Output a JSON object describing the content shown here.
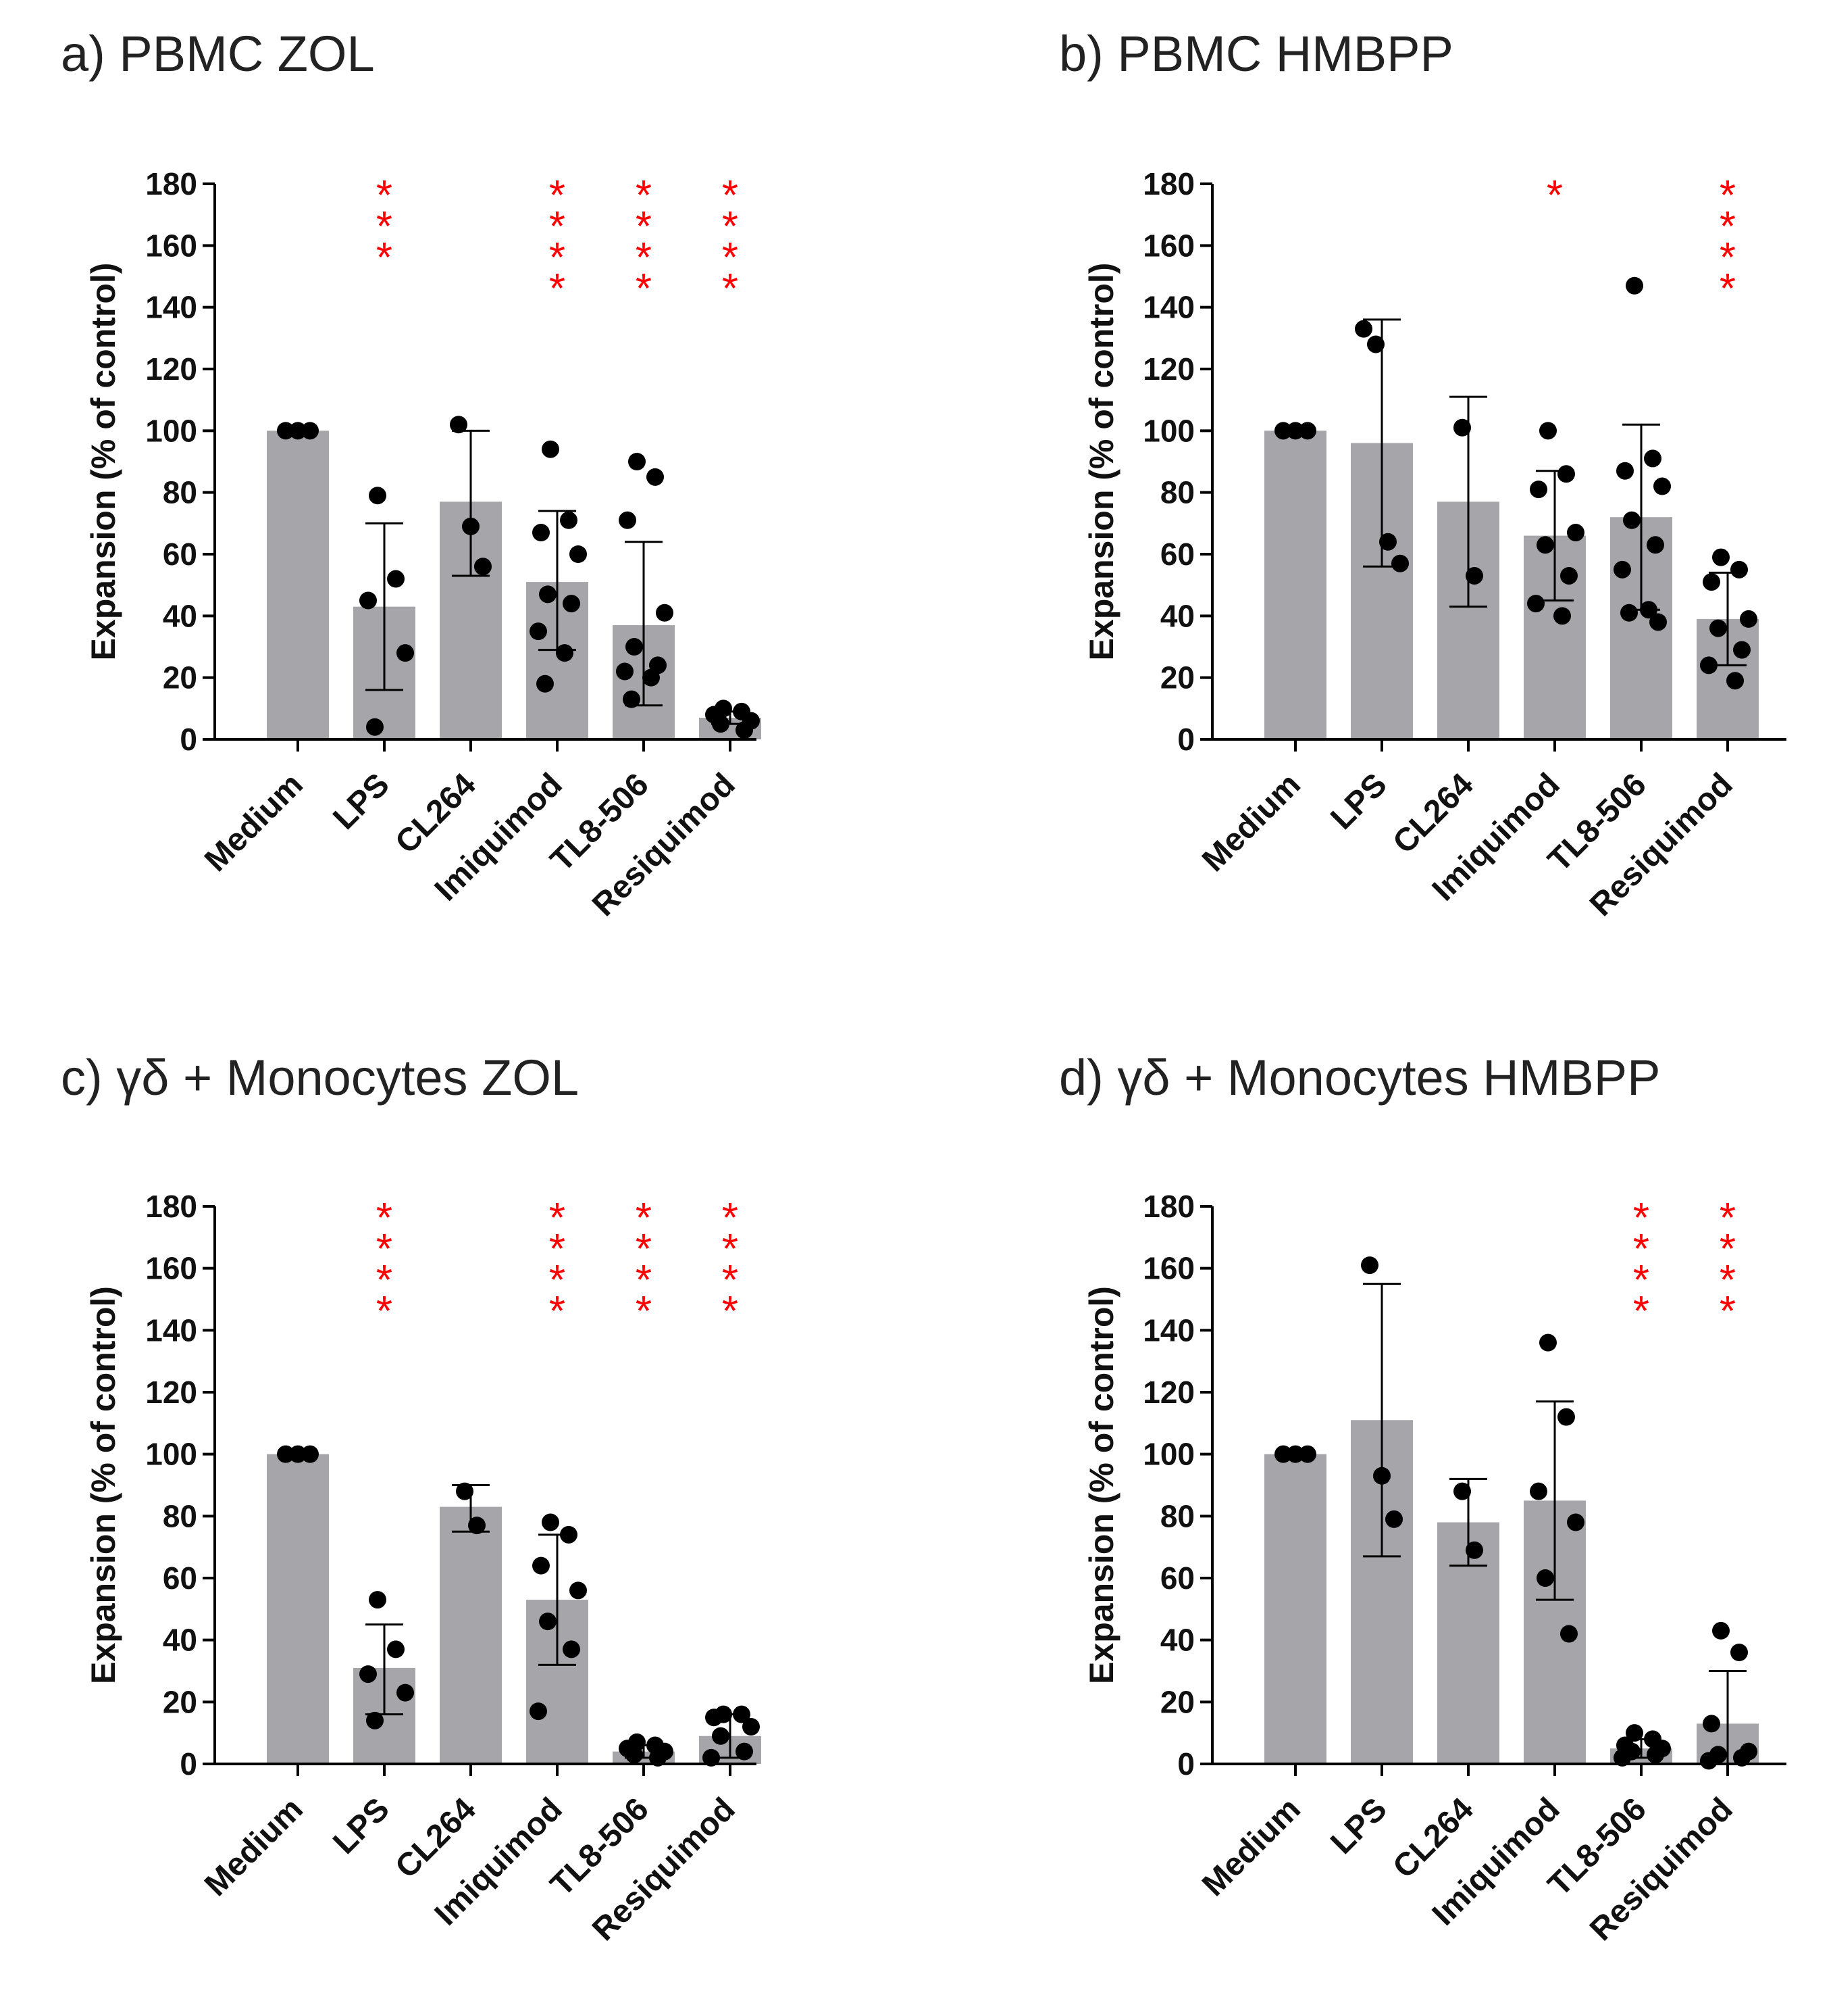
{
  "colors": {
    "bar": "#a6a6aa",
    "point": "#000000",
    "axis": "#000000",
    "significance": "#ff0000"
  },
  "chart_data": [
    {
      "type": "bar",
      "panel_title": "a) PBMC ZOL",
      "ylabel": "Expansion (% of control)",
      "ylim": [
        0,
        180
      ],
      "yticks": [
        "0",
        "20",
        "40",
        "60",
        "80",
        "100",
        "120",
        "140",
        "160",
        "180"
      ],
      "categories": [
        "Medium",
        "LPS",
        "CL264",
        "Imiquimod",
        "TL8-506",
        "Resiquimod"
      ],
      "means": [
        100,
        43,
        77,
        51,
        37,
        7
      ],
      "sd_upper": [
        100,
        70,
        100,
        74,
        64,
        9
      ],
      "sd_lower": [
        100,
        16,
        53,
        29,
        11,
        5
      ],
      "points": [
        [
          100,
          100,
          100
        ],
        [
          79,
          52,
          45,
          28,
          4
        ],
        [
          102,
          69,
          56
        ],
        [
          94,
          71,
          67,
          60,
          47,
          44,
          35,
          28,
          18
        ],
        [
          90,
          85,
          71,
          41,
          30,
          24,
          22,
          20,
          13
        ],
        [
          10,
          9,
          8,
          6,
          5,
          3
        ]
      ],
      "significance": [
        "",
        "***",
        "",
        "****",
        "****",
        "****"
      ]
    },
    {
      "type": "bar",
      "panel_title": "b) PBMC HMBPP",
      "ylabel": "Expansion (% of control)",
      "ylim": [
        0,
        180
      ],
      "yticks": [
        "0",
        "20",
        "40",
        "60",
        "80",
        "100",
        "120",
        "140",
        "160",
        "180"
      ],
      "categories": [
        "Medium",
        "LPS",
        "CL264",
        "Imiquimod",
        "TL8-506",
        "Resiquimod"
      ],
      "means": [
        100,
        96,
        77,
        66,
        72,
        39
      ],
      "sd_upper": [
        100,
        136,
        111,
        87,
        102,
        54
      ],
      "sd_lower": [
        100,
        56,
        43,
        45,
        42,
        24
      ],
      "points": [
        [
          100,
          100,
          100
        ],
        [
          133,
          128,
          64,
          57
        ],
        [
          101,
          53
        ],
        [
          100,
          86,
          81,
          67,
          63,
          53,
          44,
          40
        ],
        [
          147,
          91,
          87,
          82,
          71,
          63,
          55,
          42,
          41,
          38
        ],
        [
          59,
          55,
          51,
          39,
          36,
          29,
          24,
          19
        ]
      ],
      "significance": [
        "",
        "",
        "",
        "*",
        "",
        "****"
      ]
    },
    {
      "type": "bar",
      "panel_title": "c) γδ + Monocytes ZOL",
      "ylabel": "Expansion (% of control)",
      "ylim": [
        0,
        180
      ],
      "yticks": [
        "0",
        "20",
        "40",
        "60",
        "80",
        "100",
        "120",
        "140",
        "160",
        "180"
      ],
      "categories": [
        "Medium",
        "LPS",
        "CL264",
        "Imiquimod",
        "TL8-506",
        "Resiquimod"
      ],
      "means": [
        100,
        31,
        83,
        53,
        4,
        9
      ],
      "sd_upper": [
        100,
        45,
        90,
        74,
        6,
        16
      ],
      "sd_lower": [
        100,
        16,
        75,
        32,
        2,
        2
      ],
      "points": [
        [
          100,
          100,
          100
        ],
        [
          53,
          37,
          29,
          23,
          14
        ],
        [
          88,
          77
        ],
        [
          78,
          74,
          64,
          56,
          46,
          37,
          17
        ],
        [
          7,
          6,
          5,
          4,
          3,
          2
        ],
        [
          16,
          16,
          15,
          12,
          9,
          4,
          2
        ]
      ],
      "significance": [
        "",
        "****",
        "",
        "****",
        "****",
        "****"
      ]
    },
    {
      "type": "bar",
      "panel_title": "d) γδ + Monocytes HMBPP",
      "ylabel": "Expansion (% of control)",
      "ylim": [
        0,
        180
      ],
      "yticks": [
        "0",
        "20",
        "40",
        "60",
        "80",
        "100",
        "120",
        "140",
        "160",
        "180"
      ],
      "categories": [
        "Medium",
        "LPS",
        "CL264",
        "Imiquimod",
        "TL8-506",
        "Resiquimod"
      ],
      "means": [
        100,
        111,
        78,
        85,
        5,
        13
      ],
      "sd_upper": [
        100,
        155,
        92,
        117,
        8,
        30
      ],
      "sd_lower": [
        100,
        67,
        64,
        53,
        2,
        0
      ],
      "points": [
        [
          100,
          100,
          100
        ],
        [
          161,
          93,
          79
        ],
        [
          88,
          69
        ],
        [
          136,
          112,
          88,
          78,
          60,
          42
        ],
        [
          10,
          8,
          6,
          5,
          4,
          3,
          2
        ],
        [
          43,
          36,
          13,
          4,
          3,
          2,
          1
        ]
      ],
      "significance": [
        "",
        "",
        "",
        "",
        "****",
        "****"
      ]
    }
  ]
}
